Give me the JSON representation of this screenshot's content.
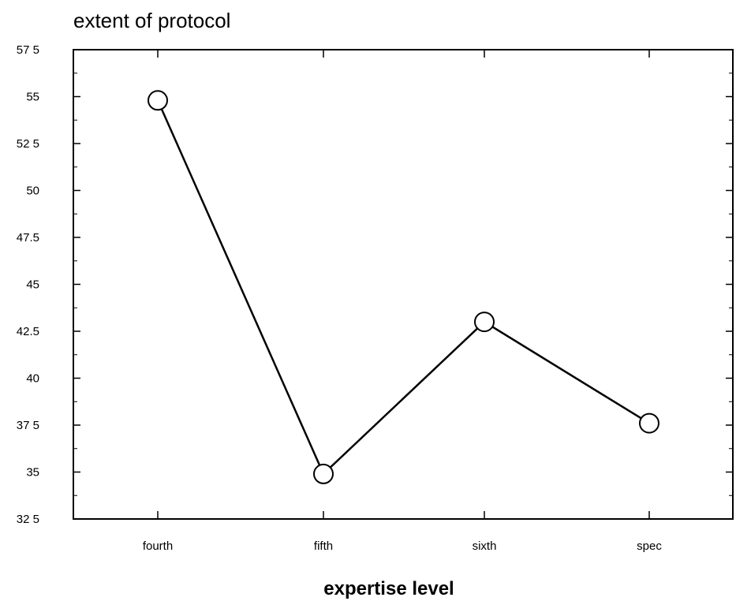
{
  "chart_data": {
    "type": "line",
    "title": "extent of protocol",
    "xlabel": "expertise level",
    "ylabel": "",
    "categories": [
      "fourth",
      "fifth",
      "sixth",
      "spec"
    ],
    "series": [
      {
        "values": [
          54.8,
          34.9,
          43.0,
          37.6
        ]
      }
    ],
    "ylim": [
      32.5,
      57.5
    ],
    "yticks": [
      32.5,
      35,
      37.5,
      40,
      42.5,
      45,
      47.5,
      50,
      52.5,
      55,
      57.5
    ],
    "ytick_labels": [
      "32 5",
      "35",
      "37 5",
      "40",
      "42.5",
      "45",
      "47.5",
      "50",
      "52 5",
      "55",
      "57 5"
    ],
    "grid": false,
    "legend": "none",
    "marker": "open-circle",
    "line_color": "#000000"
  }
}
